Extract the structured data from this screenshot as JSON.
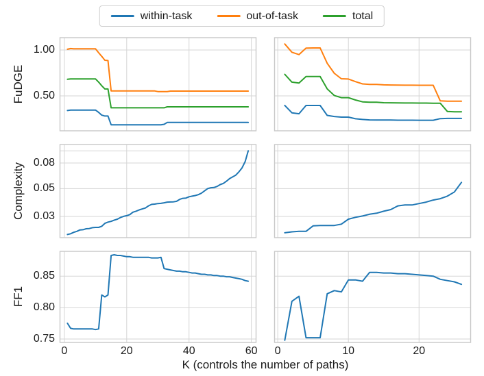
{
  "figure": {
    "background": "#ffffff",
    "grid_color": "#d5d5d5",
    "spine_color": "#c8c8c8"
  },
  "legend": {
    "items": [
      {
        "label": "within-task",
        "color": "#1f77b4"
      },
      {
        "label": "out-of-task",
        "color": "#ff7f0e"
      },
      {
        "label": "total",
        "color": "#2ca02c"
      }
    ]
  },
  "chart_data": [
    {
      "id": "fudge-left",
      "type": "line",
      "position": {
        "row": 0,
        "col": "left"
      },
      "ylabel": "FuDGE",
      "yscale": "linear",
      "ylim": [
        0.119,
        1.134
      ],
      "xlim": [
        -1.4,
        61.5
      ],
      "x_start": 1,
      "x_step": 1,
      "grid": true,
      "yticks": [
        {
          "value": 1.0,
          "label": "1.00"
        },
        {
          "value": 0.5,
          "label": "0.50"
        }
      ],
      "xgrid": [
        0,
        20,
        40,
        60
      ],
      "series": [
        {
          "name": "within-task",
          "color": "#1f77b4",
          "values": [
            0.34,
            0.345,
            0.345,
            0.345,
            0.345,
            0.345,
            0.345,
            0.345,
            0.345,
            0.345,
            0.32,
            0.29,
            0.28,
            0.28,
            0.185,
            0.185,
            0.185,
            0.185,
            0.185,
            0.185,
            0.185,
            0.185,
            0.185,
            0.185,
            0.185,
            0.185,
            0.185,
            0.185,
            0.185,
            0.185,
            0.185,
            0.19,
            0.21,
            0.21,
            0.21,
            0.21,
            0.21,
            0.21,
            0.21,
            0.21,
            0.21,
            0.21,
            0.21,
            0.21,
            0.21,
            0.21,
            0.21,
            0.21,
            0.21,
            0.21,
            0.21,
            0.21,
            0.21,
            0.21,
            0.21,
            0.21,
            0.21,
            0.21,
            0.21
          ]
        },
        {
          "name": "out-of-task",
          "color": "#ff7f0e",
          "values": [
            1.008,
            1.015,
            1.012,
            1.012,
            1.012,
            1.012,
            1.012,
            1.012,
            1.012,
            1.012,
            0.97,
            0.93,
            0.888,
            0.885,
            0.553,
            0.553,
            0.553,
            0.553,
            0.553,
            0.553,
            0.553,
            0.553,
            0.553,
            0.553,
            0.553,
            0.553,
            0.553,
            0.553,
            0.553,
            0.547,
            0.547,
            0.547,
            0.547,
            0.552,
            0.552,
            0.552,
            0.552,
            0.552,
            0.552,
            0.552,
            0.552,
            0.552,
            0.552,
            0.552,
            0.552,
            0.552,
            0.552,
            0.552,
            0.552,
            0.552,
            0.552,
            0.552,
            0.552,
            0.552,
            0.552,
            0.552,
            0.552,
            0.552,
            0.552
          ]
        },
        {
          "name": "total",
          "color": "#2ca02c",
          "values": [
            0.68,
            0.685,
            0.685,
            0.685,
            0.685,
            0.685,
            0.685,
            0.685,
            0.685,
            0.685,
            0.65,
            0.61,
            0.575,
            0.575,
            0.37,
            0.37,
            0.37,
            0.37,
            0.37,
            0.37,
            0.37,
            0.37,
            0.37,
            0.37,
            0.37,
            0.37,
            0.37,
            0.37,
            0.37,
            0.37,
            0.37,
            0.37,
            0.38,
            0.38,
            0.38,
            0.38,
            0.38,
            0.38,
            0.38,
            0.38,
            0.38,
            0.38,
            0.38,
            0.38,
            0.38,
            0.38,
            0.38,
            0.38,
            0.38,
            0.38,
            0.38,
            0.38,
            0.38,
            0.38,
            0.38,
            0.38,
            0.38,
            0.38,
            0.38
          ]
        }
      ]
    },
    {
      "id": "fudge-right",
      "type": "line",
      "position": {
        "row": 0,
        "col": "right"
      },
      "yscale": "linear",
      "ylim": [
        0.119,
        1.134
      ],
      "xlim": [
        -0.45,
        27.3
      ],
      "x_start": 1,
      "x_step": 1,
      "grid": true,
      "ygrid": [
        1.0,
        0.5
      ],
      "xgrid": [
        0,
        10,
        20
      ],
      "series": [
        {
          "name": "within-task",
          "color": "#1f77b4",
          "values": [
            0.396,
            0.315,
            0.305,
            0.395,
            0.395,
            0.395,
            0.287,
            0.275,
            0.268,
            0.268,
            0.25,
            0.243,
            0.238,
            0.237,
            0.236,
            0.236,
            0.235,
            0.235,
            0.235,
            0.234,
            0.234,
            0.234,
            0.252,
            0.254,
            0.254,
            0.254
          ]
        },
        {
          "name": "out-of-task",
          "color": "#ff7f0e",
          "values": [
            1.065,
            0.975,
            0.95,
            1.02,
            1.022,
            1.022,
            0.855,
            0.746,
            0.686,
            0.683,
            0.655,
            0.63,
            0.625,
            0.625,
            0.62,
            0.618,
            0.617,
            0.616,
            0.616,
            0.615,
            0.615,
            0.615,
            0.445,
            0.442,
            0.442,
            0.442
          ]
        },
        {
          "name": "total",
          "color": "#2ca02c",
          "values": [
            0.735,
            0.65,
            0.64,
            0.71,
            0.71,
            0.71,
            0.576,
            0.504,
            0.48,
            0.48,
            0.455,
            0.435,
            0.43,
            0.43,
            0.425,
            0.424,
            0.423,
            0.422,
            0.422,
            0.421,
            0.421,
            0.42,
            0.42,
            0.33,
            0.326,
            0.326
          ]
        }
      ]
    },
    {
      "id": "complexity-left",
      "type": "line",
      "position": {
        "row": 1,
        "col": "left"
      },
      "ylabel": "Complexity",
      "yscale": "log",
      "ylim": [
        0.0203,
        0.1123
      ],
      "xlim": [
        -1.4,
        61.5
      ],
      "x_start": 1,
      "x_step": 1,
      "grid": true,
      "yticks": [
        {
          "value": 0.08,
          "label": "0.08"
        },
        {
          "value": 0.05,
          "label": "0.05"
        },
        {
          "value": 0.03,
          "label": "0.03"
        }
      ],
      "ygrid_extra": [
        0.1
      ],
      "xgrid": [
        0,
        20,
        40,
        60
      ],
      "series": [
        {
          "name": "within-task",
          "color": "#1f77b4",
          "values": [
            0.0215,
            0.0218,
            0.0224,
            0.0228,
            0.0234,
            0.0235,
            0.0239,
            0.024,
            0.0244,
            0.0245,
            0.0245,
            0.025,
            0.0264,
            0.027,
            0.0274,
            0.028,
            0.0285,
            0.0294,
            0.03,
            0.0304,
            0.031,
            0.0324,
            0.033,
            0.0338,
            0.0344,
            0.035,
            0.0364,
            0.0374,
            0.0376,
            0.038,
            0.0381,
            0.0385,
            0.039,
            0.0391,
            0.0392,
            0.0396,
            0.041,
            0.0418,
            0.042,
            0.043,
            0.0435,
            0.044,
            0.0447,
            0.046,
            0.048,
            0.05,
            0.0508,
            0.051,
            0.052,
            0.0538,
            0.055,
            0.0572,
            0.06,
            0.062,
            0.064,
            0.068,
            0.073,
            0.082,
            0.1
          ]
        }
      ]
    },
    {
      "id": "complexity-right",
      "type": "line",
      "position": {
        "row": 1,
        "col": "right"
      },
      "yscale": "log",
      "ylim": [
        0.0203,
        0.1123
      ],
      "xlim": [
        -0.45,
        27.3
      ],
      "x_start": 1,
      "x_step": 1,
      "grid": true,
      "ygrid": [
        0.1,
        0.08,
        0.05,
        0.03
      ],
      "xgrid": [
        0,
        10,
        20
      ],
      "series": [
        {
          "name": "within-task",
          "color": "#1f77b4",
          "values": [
            0.0222,
            0.0226,
            0.0228,
            0.0228,
            0.0252,
            0.0254,
            0.0254,
            0.0254,
            0.026,
            0.0285,
            0.0295,
            0.0302,
            0.0312,
            0.0318,
            0.033,
            0.034,
            0.0364,
            0.037,
            0.037,
            0.038,
            0.039,
            0.0405,
            0.0415,
            0.0435,
            0.047,
            0.056
          ]
        }
      ]
    },
    {
      "id": "ff1-left",
      "type": "line",
      "position": {
        "row": 2,
        "col": "left"
      },
      "ylabel": "FF1",
      "xlabel": "K (controls the number of paths)",
      "yscale": "linear",
      "ylim": [
        0.7445,
        0.8895
      ],
      "xlim": [
        -1.4,
        61.5
      ],
      "x_start": 1,
      "x_step": 1,
      "grid": true,
      "yticks": [
        {
          "value": 0.85,
          "label": "0.85"
        },
        {
          "value": 0.8,
          "label": "0.80"
        },
        {
          "value": 0.75,
          "label": "0.75"
        }
      ],
      "xticks": [
        {
          "value": 0,
          "label": "0"
        },
        {
          "value": 20,
          "label": "20"
        },
        {
          "value": 40,
          "label": "40"
        },
        {
          "value": 60,
          "label": "60"
        }
      ],
      "series": [
        {
          "name": "within-task",
          "color": "#1f77b4",
          "values": [
            0.775,
            0.767,
            0.766,
            0.766,
            0.766,
            0.766,
            0.766,
            0.766,
            0.766,
            0.765,
            0.766,
            0.82,
            0.817,
            0.82,
            0.883,
            0.884,
            0.883,
            0.883,
            0.882,
            0.881,
            0.881,
            0.88,
            0.88,
            0.88,
            0.88,
            0.88,
            0.88,
            0.879,
            0.879,
            0.879,
            0.88,
            0.862,
            0.861,
            0.86,
            0.859,
            0.858,
            0.858,
            0.857,
            0.857,
            0.856,
            0.855,
            0.855,
            0.854,
            0.853,
            0.853,
            0.852,
            0.852,
            0.851,
            0.851,
            0.85,
            0.85,
            0.849,
            0.849,
            0.848,
            0.847,
            0.846,
            0.845,
            0.843,
            0.842
          ]
        }
      ]
    },
    {
      "id": "ff1-right",
      "type": "line",
      "position": {
        "row": 2,
        "col": "right"
      },
      "xlabel": "K (controls the number of paths)",
      "yscale": "linear",
      "ylim": [
        0.7445,
        0.8895
      ],
      "xlim": [
        -0.45,
        27.3
      ],
      "x_start": 1,
      "x_step": 1,
      "grid": true,
      "ygrid": [
        0.85,
        0.8,
        0.75
      ],
      "xticks": [
        {
          "value": 0,
          "label": "0"
        },
        {
          "value": 10,
          "label": "10"
        },
        {
          "value": 20,
          "label": "20"
        }
      ],
      "series": [
        {
          "name": "within-task",
          "color": "#1f77b4",
          "values": [
            0.748,
            0.81,
            0.818,
            0.752,
            0.752,
            0.752,
            0.822,
            0.827,
            0.825,
            0.844,
            0.844,
            0.842,
            0.856,
            0.856,
            0.855,
            0.855,
            0.854,
            0.854,
            0.853,
            0.852,
            0.851,
            0.85,
            0.845,
            0.843,
            0.841,
            0.837
          ]
        }
      ]
    }
  ]
}
